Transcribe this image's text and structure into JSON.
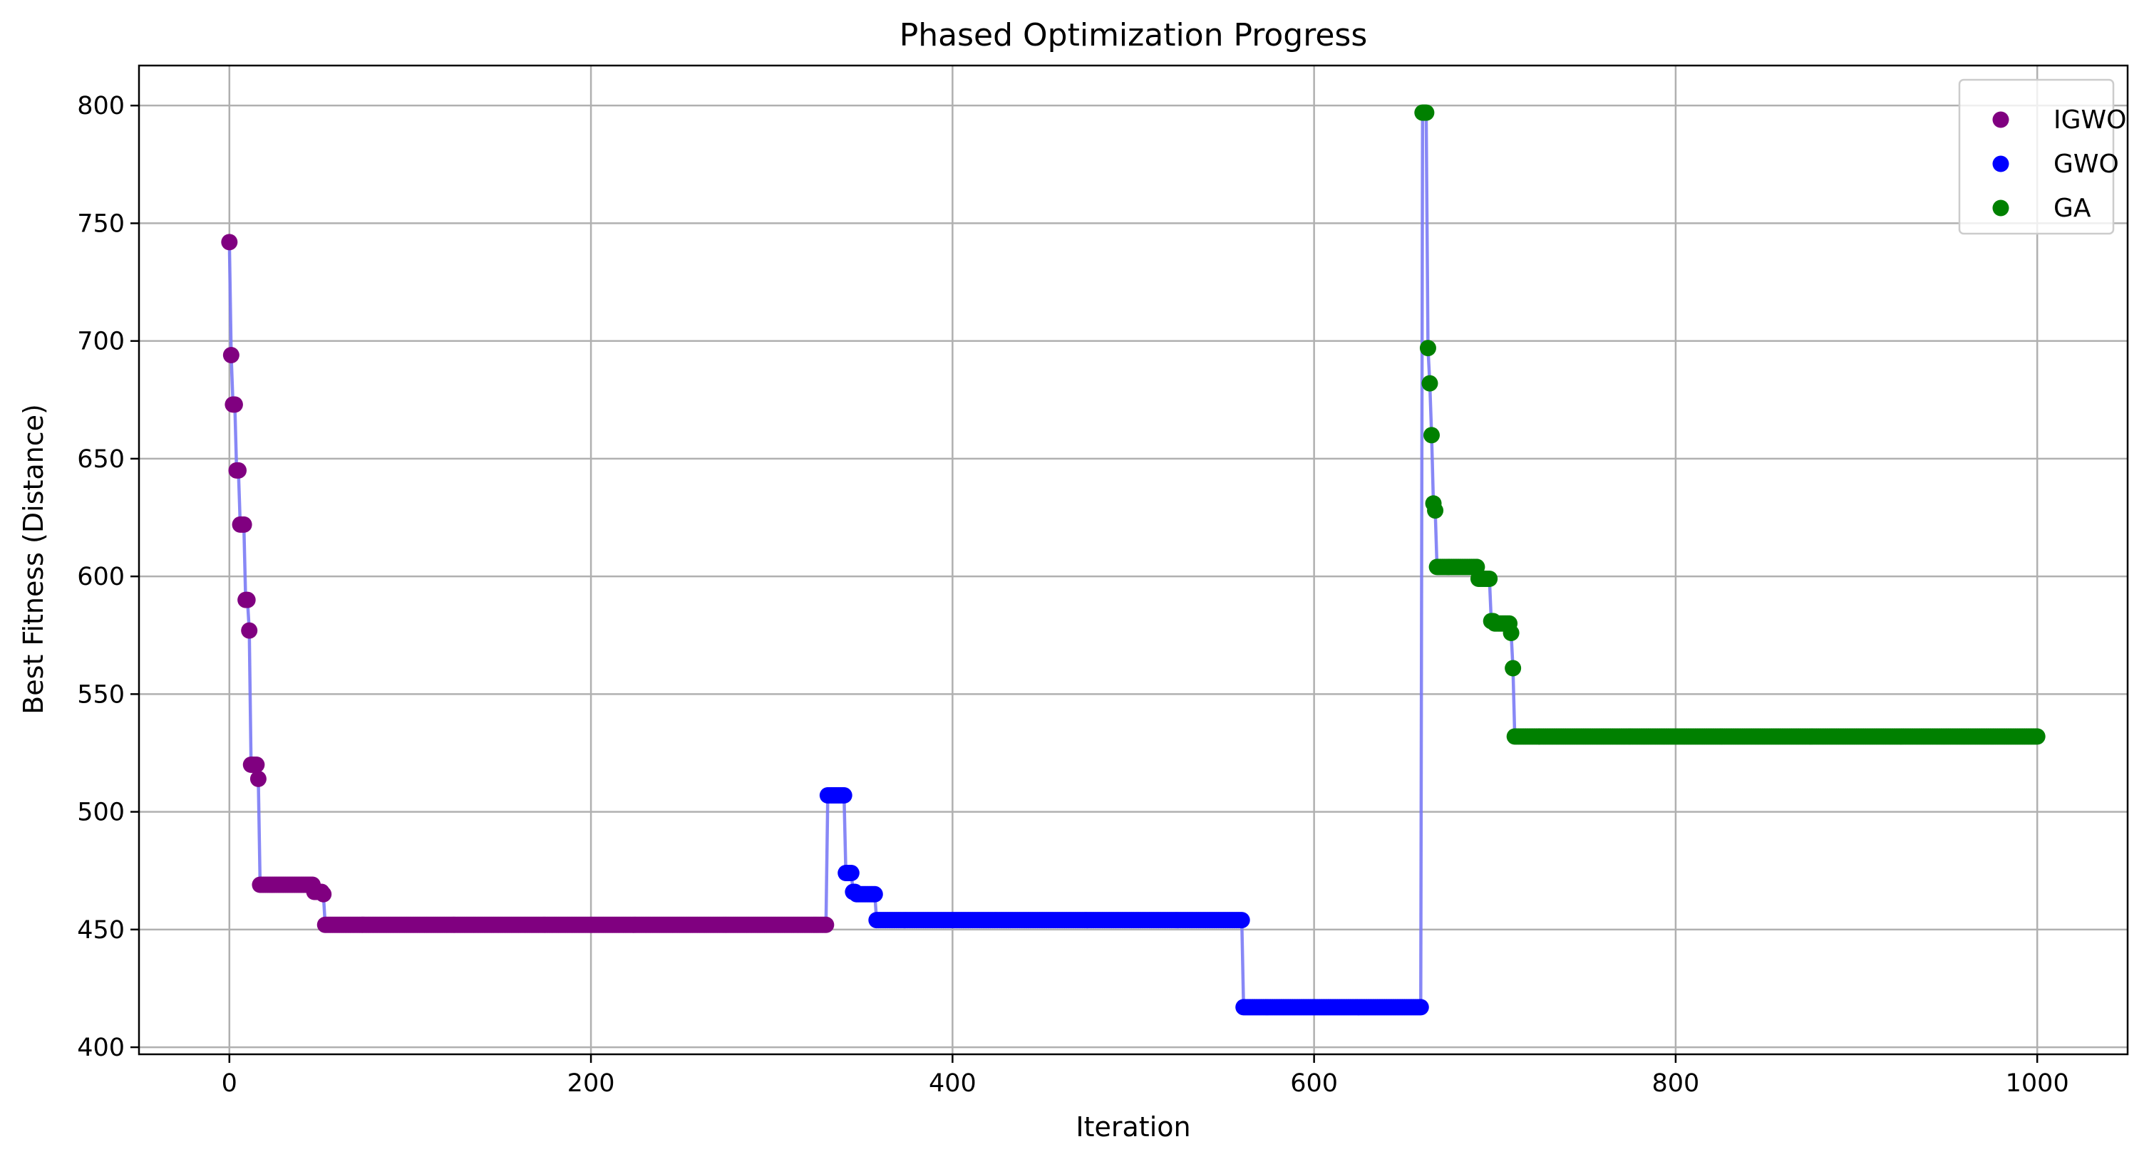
{
  "chart_data": {
    "type": "line",
    "title": "Phased Optimization Progress",
    "xlabel": "Iteration",
    "ylabel": "Best Fitness (Distance)",
    "xlim": [
      -50,
      1050
    ],
    "ylim": [
      397,
      817
    ],
    "xticks": [
      0,
      200,
      400,
      600,
      800,
      1000
    ],
    "yticks": [
      400,
      450,
      500,
      550,
      600,
      650,
      700,
      750,
      800
    ],
    "grid": true,
    "legend_position": "top-right",
    "line_color": "#7b7bf5",
    "series": [
      {
        "name": "IGWO",
        "color": "#800080",
        "segments": [
          [
            0,
            742
          ],
          [
            1,
            694
          ],
          [
            2,
            673
          ],
          [
            3,
            673
          ],
          [
            4,
            645
          ],
          [
            5,
            645
          ],
          [
            6,
            622
          ],
          [
            7,
            622
          ],
          [
            8,
            622
          ],
          [
            9,
            590
          ],
          [
            10,
            590
          ],
          [
            11,
            577
          ],
          [
            12,
            520
          ],
          [
            13,
            520
          ],
          [
            14,
            520
          ],
          [
            15,
            520
          ],
          [
            16,
            514
          ],
          [
            17,
            469
          ],
          [
            18,
            469
          ],
          [
            19,
            469
          ],
          [
            20,
            469
          ],
          [
            22,
            469
          ],
          [
            24,
            469
          ],
          [
            26,
            469
          ],
          [
            28,
            469
          ],
          [
            30,
            469
          ],
          [
            32,
            469
          ],
          [
            34,
            469
          ],
          [
            36,
            469
          ],
          [
            38,
            469
          ],
          [
            40,
            469
          ],
          [
            42,
            469
          ],
          [
            44,
            469
          ],
          [
            45,
            469
          ],
          [
            47,
            466
          ],
          [
            49,
            466
          ],
          [
            50,
            466
          ],
          [
            52,
            465
          ],
          [
            53,
            452
          ],
          [
            330,
            452
          ]
        ]
      },
      {
        "name": "GWO",
        "color": "#0000ff",
        "segments": [
          [
            331,
            507
          ],
          [
            340,
            507
          ],
          [
            341,
            474
          ],
          [
            344,
            474
          ],
          [
            345,
            466
          ],
          [
            347,
            465
          ],
          [
            357,
            465
          ],
          [
            358,
            454
          ],
          [
            560,
            454
          ],
          [
            561,
            417
          ],
          [
            659,
            417
          ]
        ]
      },
      {
        "name": "GA",
        "color": "#008000",
        "segments": [
          [
            660,
            797
          ],
          [
            661,
            797
          ],
          [
            662,
            797
          ],
          [
            663,
            697
          ],
          [
            664,
            682
          ],
          [
            665,
            660
          ],
          [
            666,
            631
          ],
          [
            667,
            628
          ],
          [
            668,
            604
          ],
          [
            690,
            604
          ],
          [
            691,
            599
          ],
          [
            694,
            599
          ],
          [
            697,
            599
          ],
          [
            698,
            581
          ],
          [
            699,
            581
          ],
          [
            700,
            580
          ],
          [
            702,
            580
          ],
          [
            705,
            580
          ],
          [
            708,
            580
          ],
          [
            709,
            576
          ],
          [
            710,
            561
          ],
          [
            711,
            532
          ],
          [
            1000,
            532
          ]
        ]
      }
    ]
  }
}
